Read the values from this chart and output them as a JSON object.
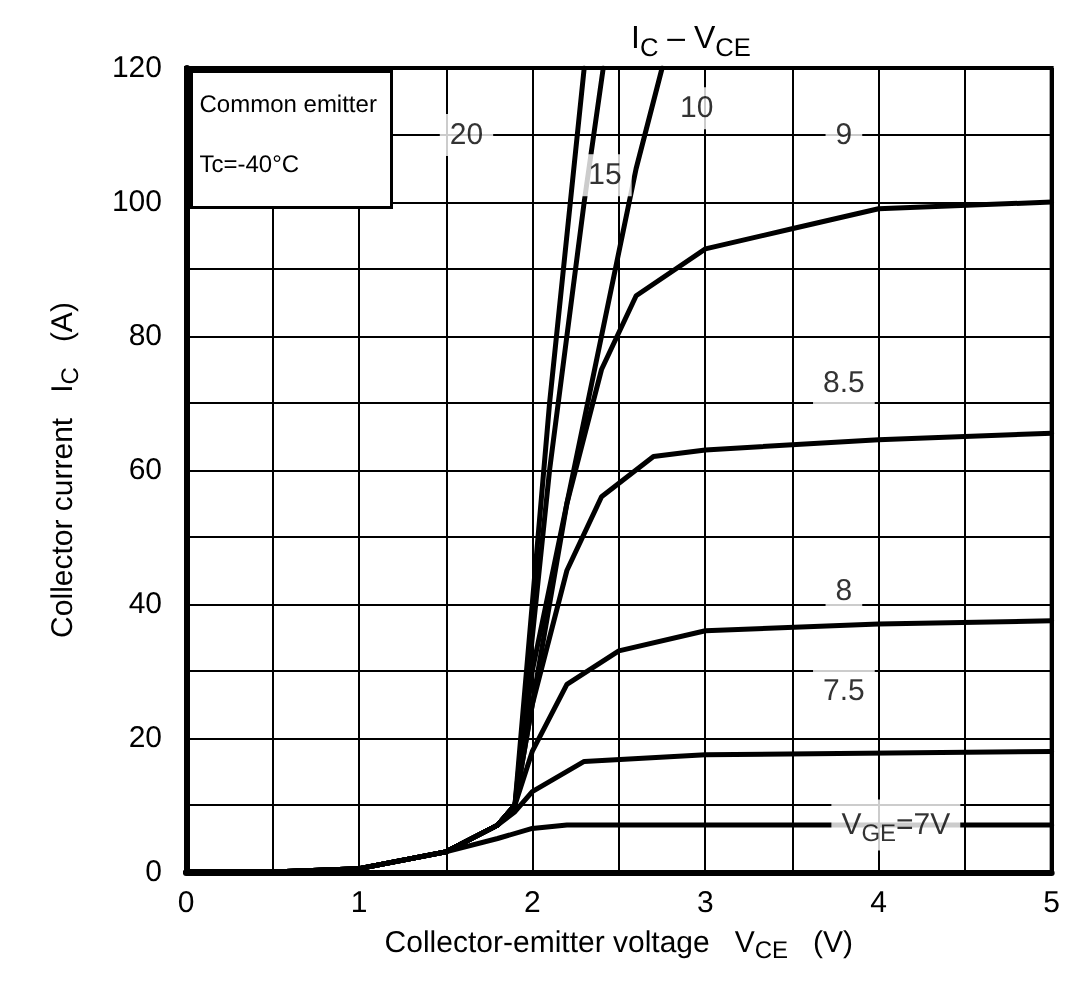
{
  "chart_data": {
    "type": "line",
    "title": "I$_{C}$ – V$_{CE}$",
    "xlabel": "Collector-emitter voltage   V$_{CE}$   (V)",
    "ylabel": "Collector current   I$_{C}$   (A)",
    "xlim": [
      0,
      5
    ],
    "ylim": [
      0,
      120
    ],
    "xticks": [
      0,
      {
        "value": 0.5,
        "label": null
      },
      1,
      {
        "value": 1.5,
        "label": null
      },
      2,
      {
        "value": 2.5,
        "label": null
      },
      3,
      {
        "value": 3.5,
        "label": null
      },
      4,
      {
        "value": 4.5,
        "label": null
      },
      5
    ],
    "yticks": [
      0,
      {
        "value": 10,
        "label": null
      },
      20,
      {
        "value": 30,
        "label": null
      },
      40,
      {
        "value": 50,
        "label": null
      },
      60,
      {
        "value": 70,
        "label": null
      },
      80,
      {
        "value": 90,
        "label": null
      },
      100,
      {
        "value": 110,
        "label": null
      },
      120
    ],
    "grid": true,
    "marker": "none",
    "line_style": "solid",
    "series": [
      {
        "color": "#000000",
        "x": [
          0,
          0.5,
          1,
          1.5,
          1.8,
          1.9,
          2.0,
          2.1,
          2.2,
          2.3
        ],
        "values": [
          0,
          0,
          0.5,
          3,
          7,
          10,
          40,
          70,
          95,
          120
        ]
      },
      {
        "color": "#000000",
        "x": [
          0,
          0.5,
          1,
          1.5,
          1.8,
          1.9,
          2.0,
          2.1,
          2.2,
          2.3,
          2.41
        ],
        "values": [
          0,
          0,
          0.5,
          3,
          7,
          10,
          35,
          60,
          80,
          100,
          120
        ]
      },
      {
        "color": "#000000",
        "x": [
          0,
          0.5,
          1,
          1.5,
          1.8,
          1.9,
          2.0,
          2.2,
          2.4,
          2.6,
          2.75
        ],
        "values": [
          0,
          0,
          0.5,
          3,
          7,
          10,
          25,
          55,
          80,
          105,
          120
        ]
      },
      {
        "color": "#000000",
        "x": [
          0,
          0.5,
          1,
          1.5,
          1.8,
          1.9,
          2.0,
          2.2,
          2.4,
          2.6,
          3,
          3.5,
          4,
          5
        ],
        "values": [
          0,
          0,
          0.5,
          3,
          7,
          10,
          30,
          55,
          75,
          86,
          93,
          96,
          99,
          100
        ]
      },
      {
        "color": "#000000",
        "x": [
          0,
          0.5,
          1,
          1.5,
          1.8,
          1.9,
          2.0,
          2.2,
          2.4,
          2.7,
          3,
          4,
          5
        ],
        "values": [
          0,
          0,
          0.5,
          3,
          7,
          10,
          25,
          45,
          56,
          62,
          63,
          64.5,
          65.5
        ]
      },
      {
        "color": "#000000",
        "x": [
          0,
          0.5,
          1,
          1.5,
          1.8,
          1.9,
          2.0,
          2.2,
          2.5,
          3,
          4,
          5
        ],
        "values": [
          0,
          0,
          0.5,
          3,
          7,
          10,
          18,
          28,
          33,
          36,
          37,
          37.5
        ]
      },
      {
        "color": "#000000",
        "x": [
          0,
          0.5,
          1,
          1.5,
          1.8,
          1.9,
          2.0,
          2.3,
          3,
          5
        ],
        "values": [
          0,
          0,
          0.5,
          3,
          7,
          9,
          12,
          16.5,
          17.5,
          18
        ]
      },
      {
        "color": "#000000",
        "x": [
          0,
          0.5,
          1,
          1.5,
          1.8,
          2.0,
          2.2,
          3,
          5
        ],
        "values": [
          0,
          0,
          0.5,
          3,
          5,
          6.5,
          7,
          7,
          7
        ]
      }
    ],
    "annotations": [
      "Common emitter",
      "Tc=-40°C",
      {
        "text": "20",
        "x": 1.62,
        "y": 110
      },
      {
        "text": "15",
        "x": 2.42,
        "y": 104
      },
      {
        "text": "10",
        "x": 2.95,
        "y": 114
      },
      {
        "text": "9",
        "x": 3.8,
        "y": 110
      },
      {
        "text": "8.5",
        "x": 3.8,
        "y": 73
      },
      {
        "text": "8",
        "x": 3.8,
        "y": 42
      },
      {
        "text": "7.5",
        "x": 3.8,
        "y": 27
      },
      {
        "text": "V$_{GE}$=7V",
        "x": 4.1,
        "y": 7
      }
    ]
  }
}
